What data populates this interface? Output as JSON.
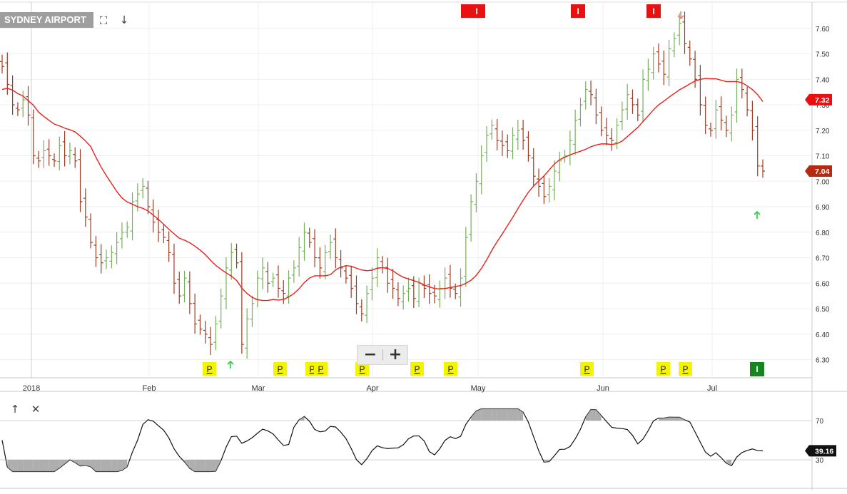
{
  "header": {
    "title": "SYDNEY AIRPORT"
  },
  "toolbar": {
    "fullscreen_icon": "expand-icon",
    "download_icon": "arrow-down-icon"
  },
  "indicator_toolbar": {
    "move_up_icon": "arrow-up-icon",
    "close_icon": "close-icon"
  },
  "zoom": {
    "minus": "−",
    "plus": "+"
  },
  "colors": {
    "up": "#77b05a",
    "down": "#a13a22",
    "flat": "#222222",
    "ma": "#e8201c",
    "price_tag": "#b52b11",
    "signal_red": "#e81010",
    "signal_green": "#17851f",
    "p_marker": "#f4f400",
    "arrow_green": "#2ecc40",
    "arrow_red": "#e88080"
  },
  "chart_data": [
    {
      "type": "ohlc",
      "title": "SYDNEY AIRPORT",
      "x_axis_labels": [
        "2018",
        "Feb",
        "Mar",
        "Apr",
        "May",
        "Jun",
        "Jul"
      ],
      "y_ticks": [
        "6.30",
        "6.40",
        "6.50",
        "6.60",
        "6.70",
        "6.80",
        "6.90",
        "7.00",
        "7.10",
        "7.20",
        "7.30",
        "7.40",
        "7.50",
        "7.60"
      ],
      "ylim": [
        6.26,
        7.68
      ],
      "grid": true,
      "last_price_label": "7.04",
      "ma_price_label": "7.32",
      "close": [
        7.45,
        7.38,
        7.3,
        7.28,
        7.32,
        7.26,
        7.1,
        7.08,
        7.12,
        7.1,
        7.08,
        7.14,
        7.1,
        7.12,
        7.08,
        6.92,
        6.86,
        6.76,
        6.7,
        6.68,
        6.7,
        6.72,
        6.76,
        6.8,
        6.82,
        6.92,
        6.95,
        6.98,
        6.9,
        6.84,
        6.8,
        6.78,
        6.72,
        6.6,
        6.55,
        6.62,
        6.52,
        6.44,
        6.42,
        6.4,
        6.36,
        6.44,
        6.55,
        6.66,
        6.72,
        6.68,
        6.36,
        6.46,
        6.52,
        6.62,
        6.66,
        6.6,
        6.62,
        6.58,
        6.56,
        6.62,
        6.66,
        6.74,
        6.8,
        6.76,
        6.7,
        6.66,
        6.72,
        6.76,
        6.7,
        6.66,
        6.62,
        6.58,
        6.52,
        6.48,
        6.56,
        6.62,
        6.7,
        6.66,
        6.6,
        6.58,
        6.54,
        6.56,
        6.58,
        6.54,
        6.6,
        6.58,
        6.56,
        6.55,
        6.58,
        6.62,
        6.58,
        6.56,
        6.62,
        6.78,
        6.92,
        7.0,
        7.1,
        7.18,
        7.22,
        7.16,
        7.14,
        7.12,
        7.18,
        7.2,
        7.16,
        7.1,
        7.02,
        6.98,
        6.94,
        6.98,
        7.04,
        7.08,
        7.1,
        7.16,
        7.24,
        7.3,
        7.36,
        7.34,
        7.26,
        7.2,
        7.18,
        7.16,
        7.22,
        7.28,
        7.34,
        7.3,
        7.26,
        7.4,
        7.44,
        7.5,
        7.46,
        7.42,
        7.52,
        7.56,
        7.62,
        7.54,
        7.48,
        7.4,
        7.3,
        7.22,
        7.2,
        7.28,
        7.24,
        7.2,
        7.26,
        7.4,
        7.36,
        7.28,
        7.2,
        7.06,
        7.04
      ]
    },
    {
      "type": "line",
      "y_ticks": [
        "70",
        "30"
      ],
      "last_value_label": "39.16"
    }
  ],
  "signals": {
    "top_markers": [
      "I",
      "I",
      "I"
    ],
    "bottom_green_marker": "I",
    "p_markers": [
      "P",
      "P",
      "P",
      "P",
      "P",
      "P",
      "P",
      "P",
      "P",
      "P"
    ]
  }
}
